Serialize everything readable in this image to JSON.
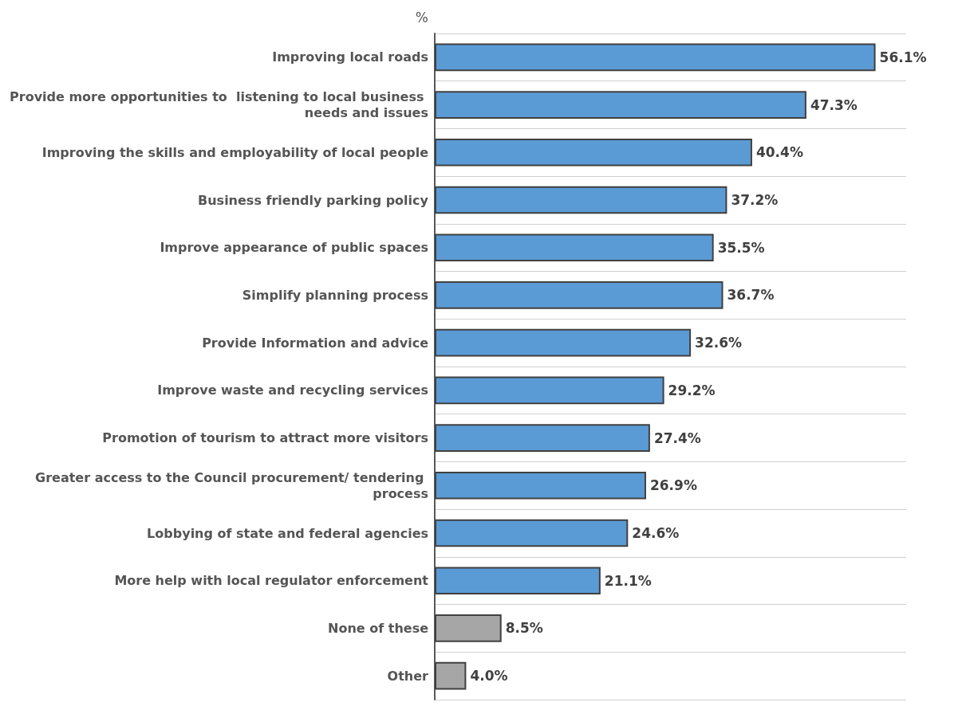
{
  "chart_data": {
    "type": "bar",
    "orientation": "horizontal",
    "ylabel": "%",
    "categories": [
      "Improving local roads",
      "Provide more opportunities to  listening to local business needs and issues",
      "Improving the skills and employability of local people",
      "Business friendly parking policy",
      "Improve appearance of public spaces",
      "Simplify planning process",
      "Provide Information and advice",
      "Improve waste and recycling services",
      "Promotion of tourism to attract more visitors",
      "Greater access to the Council procurement/ tendering process",
      "Lobbying of state and federal agencies",
      "More help with local regulator enforcement",
      "None of these",
      "Other"
    ],
    "values": [
      56.1,
      47.3,
      40.4,
      37.2,
      35.5,
      36.7,
      32.6,
      29.2,
      27.4,
      26.9,
      24.6,
      21.1,
      8.5,
      4.0
    ],
    "value_labels": [
      "56.1%",
      "47.3%",
      "40.4%",
      "37.2%",
      "35.5%",
      "36.7%",
      "32.6%",
      "29.2%",
      "27.4%",
      "26.9%",
      "24.6%",
      "21.1%",
      "8.5%",
      "4.0%"
    ],
    "colors": [
      "#5b9bd5",
      "#5b9bd5",
      "#5b9bd5",
      "#5b9bd5",
      "#5b9bd5",
      "#5b9bd5",
      "#5b9bd5",
      "#5b9bd5",
      "#5b9bd5",
      "#5b9bd5",
      "#5b9bd5",
      "#5b9bd5",
      "#a6a6a6",
      "#a6a6a6"
    ],
    "grid": "y"
  }
}
